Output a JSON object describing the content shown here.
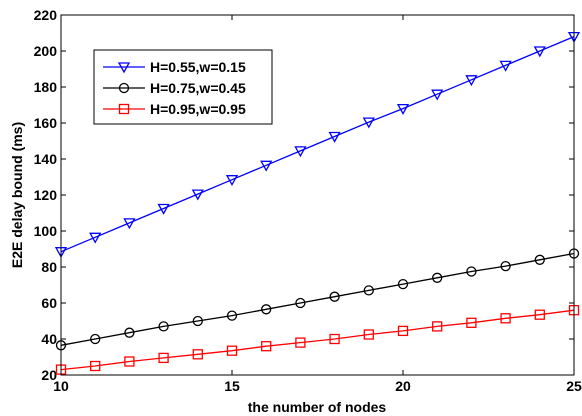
{
  "chart_data": {
    "type": "line",
    "xlabel": "the number of nodes",
    "ylabel": "E2E delay bound (ms)",
    "xlim": [
      10,
      25
    ],
    "ylim": [
      20,
      220
    ],
    "xticks": [
      10,
      15,
      20,
      25
    ],
    "yticks": [
      20,
      40,
      60,
      80,
      100,
      120,
      140,
      160,
      180,
      200,
      220
    ],
    "grid": false,
    "legend_position": "top-left",
    "x": [
      10,
      11,
      12,
      13,
      14,
      15,
      16,
      17,
      18,
      19,
      20,
      21,
      22,
      23,
      24,
      25
    ],
    "series": [
      {
        "name": "H=0.55,w=0.15",
        "color": "#0000ff",
        "marker": "triangle-down",
        "values": [
          88.5,
          96.5,
          104.5,
          112.5,
          120.5,
          128.5,
          136.5,
          144.5,
          152.5,
          160.5,
          168,
          176,
          184,
          192,
          200,
          208
        ]
      },
      {
        "name": "H=0.75,w=0.45",
        "color": "#000000",
        "marker": "circle",
        "values": [
          36.5,
          40,
          43.5,
          47,
          50,
          53,
          56.5,
          60,
          63.5,
          67,
          70.5,
          74,
          77.5,
          80.5,
          84,
          87.5
        ]
      },
      {
        "name": "H=0.95,w=0.95",
        "color": "#ff0000",
        "marker": "square",
        "values": [
          23,
          25,
          27.5,
          29.5,
          31.5,
          33.5,
          36,
          38,
          40,
          42.5,
          44.5,
          47,
          49,
          51.5,
          53.5,
          56
        ]
      }
    ]
  }
}
